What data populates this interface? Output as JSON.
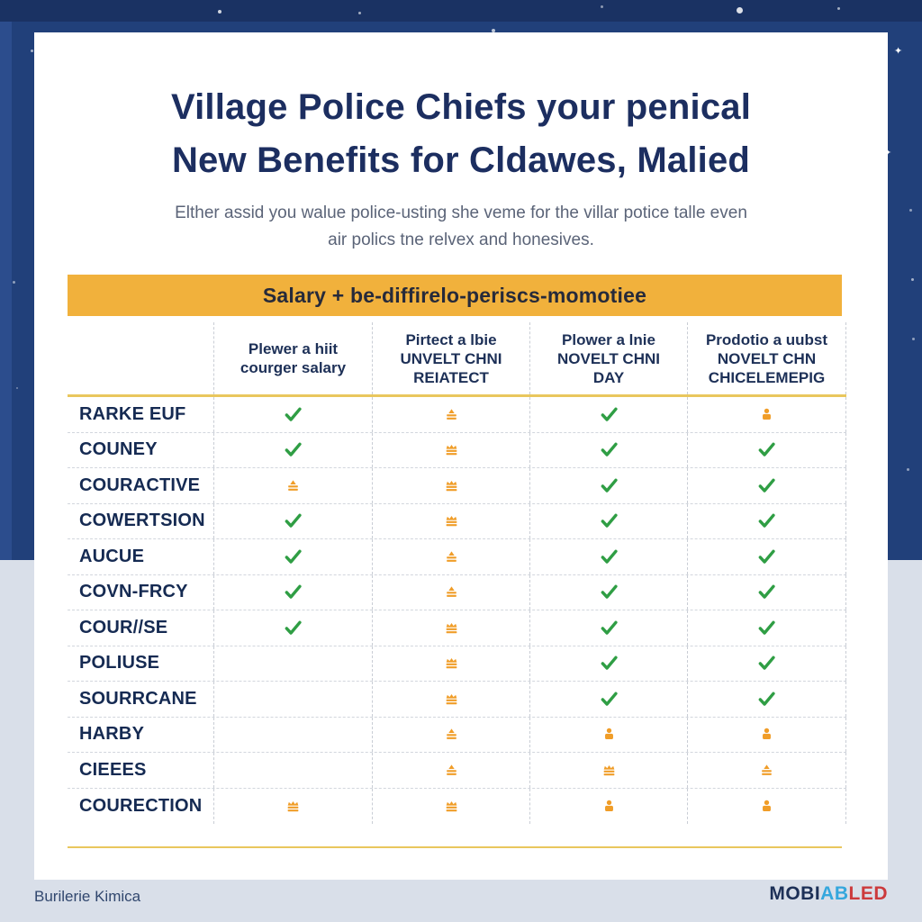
{
  "page": {
    "title_line1": "Village Police Chiefs your penical",
    "title_line2": "New Benefits for Cldawes, Malied",
    "subtitle_line1": "Elther assid you walue police-usting she veme for the villar potice talle even",
    "subtitle_line2": "air polics tne relvex and honesives.",
    "banner": "Salary + be-diffirelo-periscs-momotiee",
    "footer_left": "Burilerie Kimica",
    "brand": {
      "part1": "MOBI",
      "part2": "AB",
      "part3": "LED"
    }
  },
  "table": {
    "columns": [
      {
        "lines": [
          "Plewer a hiit",
          "courger salary"
        ]
      },
      {
        "lines": [
          "Pirtect a lbie",
          "UNVELT CHNI",
          "REIATECT"
        ]
      },
      {
        "lines": [
          "Plower a lnie",
          "NOVELT CHNI",
          "DAY"
        ]
      },
      {
        "lines": [
          "Prodotio a uubst",
          "NOVELT CHN",
          "CHICELEMEPIG"
        ]
      }
    ],
    "rows": [
      {
        "label": "RARKE EUF",
        "cells": [
          "check",
          "cake",
          "check",
          "person"
        ]
      },
      {
        "label": "COUNEY",
        "cells": [
          "check",
          "badge",
          "check",
          "check"
        ]
      },
      {
        "label": "COURACTIVE",
        "cells": [
          "cake",
          "badge",
          "check",
          "check"
        ]
      },
      {
        "label": "COWERTSION",
        "cells": [
          "check",
          "badge",
          "check",
          "check"
        ]
      },
      {
        "label": "AUCUE",
        "cells": [
          "check",
          "cake",
          "check",
          "check"
        ]
      },
      {
        "label": "COVN-FRCY",
        "cells": [
          "check",
          "cake",
          "check",
          "check"
        ]
      },
      {
        "label": "COUR//SE",
        "cells": [
          "check",
          "badge",
          "check",
          "check"
        ]
      },
      {
        "label": "POLIUSE",
        "cells": [
          "none",
          "badge",
          "check",
          "check"
        ]
      },
      {
        "label": "SOURRCANE",
        "cells": [
          "none",
          "badge",
          "check",
          "check"
        ]
      },
      {
        "label": "HARBY",
        "cells": [
          "none",
          "cake",
          "person",
          "person"
        ]
      },
      {
        "label": "CIEEES",
        "cells": [
          "none",
          "cake",
          "badge",
          "cake"
        ]
      },
      {
        "label": "COURECTION",
        "cells": [
          "badge",
          "badge",
          "person",
          "person"
        ]
      }
    ]
  },
  "icons": {
    "check": "check-icon",
    "badge": "badge-icon",
    "cake": "cake-icon",
    "person": "person-icon"
  },
  "colors": {
    "navy_background": "#21407a",
    "navy_background_dark": "#1a3263",
    "card_background": "#ffffff",
    "title_text": "#1c2e60",
    "subtitle_text": "#5b6478",
    "banner_background": "#f1b13c",
    "banner_text": "#262a3a",
    "header_text": "#1d3057",
    "row_label_text": "#152a52",
    "check_green": "#2f9e44",
    "icon_orange": "#f09d28",
    "divider_yellow": "#e9c75d",
    "lower_background": "#d9dfe9",
    "brand_navy": "#1d3057",
    "brand_blue": "#35a7dd",
    "brand_red": "#cc3a3c"
  }
}
